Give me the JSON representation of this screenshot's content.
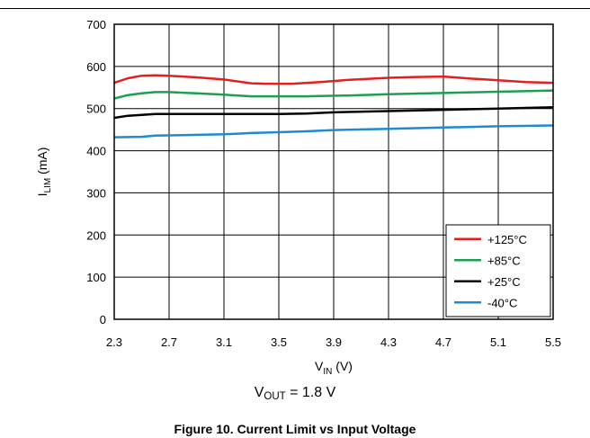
{
  "chart_data": {
    "type": "line",
    "title": "",
    "xlabel": {
      "main": "V",
      "sub": "IN",
      "unit": " (V)"
    },
    "ylabel": {
      "main": "I",
      "sub": "LIM",
      "unit": " (mA)"
    },
    "xlim": [
      2.3,
      5.5
    ],
    "ylim": [
      0,
      700
    ],
    "xticks": [
      2.3,
      2.7,
      3.1,
      3.5,
      3.9,
      4.3,
      4.7,
      5.1,
      5.5
    ],
    "xtick_labels": [
      "2.3",
      "2.7",
      "3.1",
      "3.5",
      "3.9",
      "4.3",
      "4.7",
      "5.1",
      "5.5"
    ],
    "yticks": [
      0,
      100,
      200,
      300,
      400,
      500,
      600,
      700
    ],
    "ytick_labels": [
      "0",
      "100",
      "200",
      "300",
      "400",
      "500",
      "600",
      "700"
    ],
    "grid": true,
    "legend_position": "bottom-right",
    "series": [
      {
        "name": "+125°C",
        "color": "#e02020",
        "points": [
          [
            2.3,
            561
          ],
          [
            2.4,
            572
          ],
          [
            2.5,
            578
          ],
          [
            2.6,
            579
          ],
          [
            2.7,
            578
          ],
          [
            2.9,
            574
          ],
          [
            3.1,
            569
          ],
          [
            3.3,
            560
          ],
          [
            3.4,
            559
          ],
          [
            3.6,
            559
          ],
          [
            3.8,
            563
          ],
          [
            4.0,
            568
          ],
          [
            4.3,
            573
          ],
          [
            4.5,
            575
          ],
          [
            4.7,
            576
          ],
          [
            4.9,
            571
          ],
          [
            5.1,
            567
          ],
          [
            5.3,
            563
          ],
          [
            5.5,
            561
          ]
        ]
      },
      {
        "name": "+85°C",
        "color": "#1aa050",
        "points": [
          [
            2.3,
            524
          ],
          [
            2.4,
            532
          ],
          [
            2.5,
            536
          ],
          [
            2.6,
            539
          ],
          [
            2.7,
            539
          ],
          [
            2.9,
            536
          ],
          [
            3.1,
            533
          ],
          [
            3.3,
            529
          ],
          [
            3.5,
            529
          ],
          [
            3.7,
            529
          ],
          [
            3.8,
            530
          ],
          [
            4.0,
            531
          ],
          [
            4.3,
            534
          ],
          [
            4.7,
            537
          ],
          [
            5.1,
            540
          ],
          [
            5.5,
            543
          ]
        ]
      },
      {
        "name": "+25°C",
        "color": "#000000",
        "points": [
          [
            2.3,
            478
          ],
          [
            2.4,
            483
          ],
          [
            2.5,
            485
          ],
          [
            2.6,
            487
          ],
          [
            2.7,
            487
          ],
          [
            3.1,
            487
          ],
          [
            3.5,
            487
          ],
          [
            3.7,
            488
          ],
          [
            3.9,
            491
          ],
          [
            4.3,
            494
          ],
          [
            4.7,
            497
          ],
          [
            5.1,
            500
          ],
          [
            5.5,
            503
          ]
        ]
      },
      {
        "name": "-40°C",
        "color": "#1f8ad0",
        "points": [
          [
            2.3,
            432
          ],
          [
            2.5,
            433
          ],
          [
            2.6,
            436
          ],
          [
            2.8,
            437
          ],
          [
            3.1,
            439
          ],
          [
            3.3,
            442
          ],
          [
            3.5,
            444
          ],
          [
            3.7,
            446
          ],
          [
            3.9,
            449
          ],
          [
            4.3,
            452
          ],
          [
            4.7,
            455
          ],
          [
            5.1,
            458
          ],
          [
            5.5,
            460
          ]
        ]
      }
    ]
  },
  "condition": {
    "main": "V",
    "sub": "OUT",
    "rest": " = 1.8 V"
  },
  "caption": "Figure 10. Current Limit vs Input Voltage"
}
